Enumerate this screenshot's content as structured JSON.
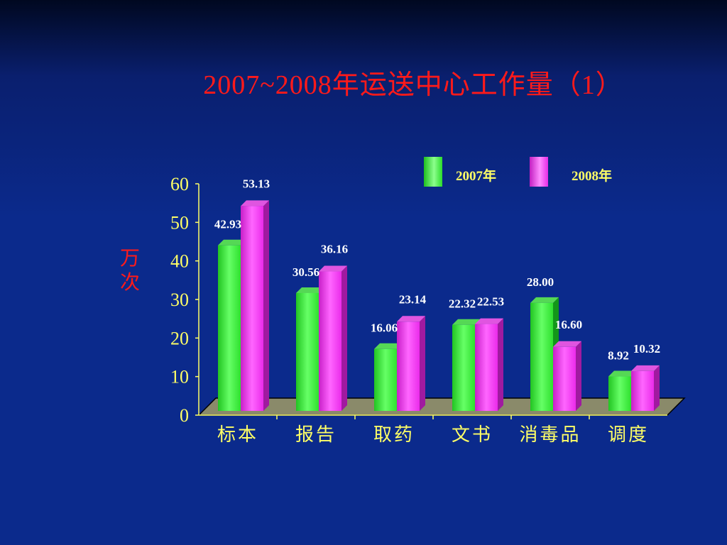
{
  "slide": {
    "title": "2007~2008年运送中心工作量（1）",
    "unit_chars": [
      "万",
      "次"
    ]
  },
  "legend": [
    {
      "name": "2007年",
      "color": "#33ff33"
    },
    {
      "name": "2008年",
      "color": "#ff33ff"
    }
  ],
  "colors": {
    "background": "#0b2a8c",
    "axis_text": "#ffff66",
    "title": "#ff1a1a",
    "floor": "#8a8a6a"
  },
  "chart_data": {
    "type": "bar",
    "title": "2007~2008年运送中心工作量（1）",
    "ylabel": "万次",
    "xlabel": "",
    "categories": [
      "标本",
      "报告",
      "取药",
      "文书",
      "消毒品",
      "调度"
    ],
    "series": [
      {
        "name": "2007年",
        "values": [
          42.93,
          30.56,
          16.06,
          22.32,
          28.0,
          8.92
        ],
        "labels": [
          "42.93",
          "30.56",
          "16.06",
          "22.32",
          "28.00",
          "8.92"
        ]
      },
      {
        "name": "2008年",
        "values": [
          53.13,
          36.16,
          23.14,
          22.53,
          16.6,
          10.32
        ],
        "labels": [
          "53.13",
          "36.16",
          "23.14",
          "22.53",
          "16.60",
          "10.32"
        ]
      }
    ],
    "ylim": [
      0,
      60
    ],
    "yticks": [
      "0",
      "10",
      "20",
      "30",
      "40",
      "50",
      "60"
    ],
    "legend_position": "top-right",
    "grid": false,
    "style": "3d-columns"
  }
}
